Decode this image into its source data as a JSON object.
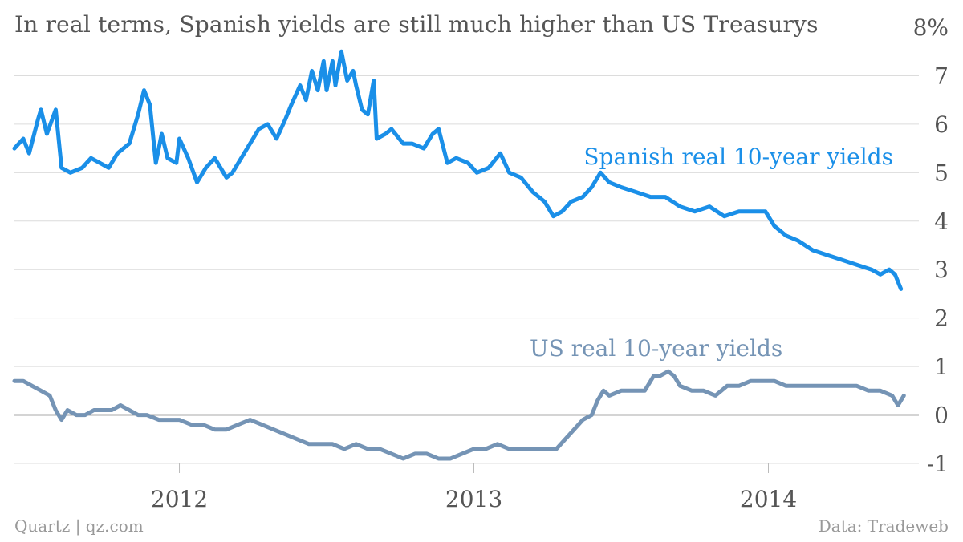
{
  "chart_data": {
    "type": "line",
    "title": "In real terms, Spanish yields are still much higher than US Treasurys",
    "ylim": [
      -1,
      8
    ],
    "yticks": [
      "-1",
      "0",
      "1",
      "2",
      "3",
      "4",
      "5",
      "6",
      "7",
      "8%"
    ],
    "xticks": [
      {
        "label": "2012",
        "t": 2012.0
      },
      {
        "label": "2013",
        "t": 2013.0
      },
      {
        "label": "2014",
        "t": 2014.0
      }
    ],
    "xlim": [
      2011.44,
      2014.47
    ],
    "grid": true,
    "series": [
      {
        "name": "Spanish real 10-year yields",
        "color": "#1a8fe8",
        "points": [
          [
            2011.44,
            5.5
          ],
          [
            2011.47,
            5.7
          ],
          [
            2011.49,
            5.4
          ],
          [
            2011.52,
            6.1
          ],
          [
            2011.53,
            6.3
          ],
          [
            2011.55,
            5.8
          ],
          [
            2011.58,
            6.3
          ],
          [
            2011.6,
            5.1
          ],
          [
            2011.63,
            5.0
          ],
          [
            2011.67,
            5.1
          ],
          [
            2011.7,
            5.3
          ],
          [
            2011.73,
            5.2
          ],
          [
            2011.76,
            5.1
          ],
          [
            2011.79,
            5.4
          ],
          [
            2011.83,
            5.6
          ],
          [
            2011.86,
            6.2
          ],
          [
            2011.88,
            6.7
          ],
          [
            2011.9,
            6.4
          ],
          [
            2011.92,
            5.2
          ],
          [
            2011.94,
            5.8
          ],
          [
            2011.96,
            5.3
          ],
          [
            2011.99,
            5.2
          ],
          [
            2012.0,
            5.7
          ],
          [
            2012.03,
            5.3
          ],
          [
            2012.06,
            4.8
          ],
          [
            2012.09,
            5.1
          ],
          [
            2012.12,
            5.3
          ],
          [
            2012.16,
            4.9
          ],
          [
            2012.18,
            5.0
          ],
          [
            2012.21,
            5.3
          ],
          [
            2012.24,
            5.6
          ],
          [
            2012.27,
            5.9
          ],
          [
            2012.3,
            6.0
          ],
          [
            2012.33,
            5.7
          ],
          [
            2012.36,
            6.1
          ],
          [
            2012.38,
            6.4
          ],
          [
            2012.41,
            6.8
          ],
          [
            2012.43,
            6.5
          ],
          [
            2012.45,
            7.1
          ],
          [
            2012.47,
            6.7
          ],
          [
            2012.49,
            7.3
          ],
          [
            2012.5,
            6.7
          ],
          [
            2012.52,
            7.3
          ],
          [
            2012.53,
            6.8
          ],
          [
            2012.55,
            7.5
          ],
          [
            2012.57,
            6.9
          ],
          [
            2012.59,
            7.1
          ],
          [
            2012.6,
            6.8
          ],
          [
            2012.62,
            6.3
          ],
          [
            2012.64,
            6.2
          ],
          [
            2012.66,
            6.9
          ],
          [
            2012.67,
            5.7
          ],
          [
            2012.7,
            5.8
          ],
          [
            2012.72,
            5.9
          ],
          [
            2012.76,
            5.6
          ],
          [
            2012.79,
            5.6
          ],
          [
            2012.83,
            5.5
          ],
          [
            2012.86,
            5.8
          ],
          [
            2012.88,
            5.9
          ],
          [
            2012.91,
            5.2
          ],
          [
            2012.94,
            5.3
          ],
          [
            2012.98,
            5.2
          ],
          [
            2013.01,
            5.0
          ],
          [
            2013.05,
            5.1
          ],
          [
            2013.09,
            5.4
          ],
          [
            2013.12,
            5.0
          ],
          [
            2013.16,
            4.9
          ],
          [
            2013.2,
            4.6
          ],
          [
            2013.24,
            4.4
          ],
          [
            2013.27,
            4.1
          ],
          [
            2013.3,
            4.2
          ],
          [
            2013.33,
            4.4
          ],
          [
            2013.37,
            4.5
          ],
          [
            2013.4,
            4.7
          ],
          [
            2013.43,
            5.0
          ],
          [
            2013.46,
            4.8
          ],
          [
            2013.5,
            4.7
          ],
          [
            2013.55,
            4.6
          ],
          [
            2013.6,
            4.5
          ],
          [
            2013.65,
            4.5
          ],
          [
            2013.7,
            4.3
          ],
          [
            2013.75,
            4.2
          ],
          [
            2013.8,
            4.3
          ],
          [
            2013.85,
            4.1
          ],
          [
            2013.9,
            4.2
          ],
          [
            2013.93,
            4.2
          ],
          [
            2013.96,
            4.2
          ],
          [
            2013.99,
            4.2
          ],
          [
            2014.02,
            3.9
          ],
          [
            2014.06,
            3.7
          ],
          [
            2014.1,
            3.6
          ],
          [
            2014.15,
            3.4
          ],
          [
            2014.2,
            3.3
          ],
          [
            2014.25,
            3.2
          ],
          [
            2014.3,
            3.1
          ],
          [
            2014.35,
            3.0
          ],
          [
            2014.38,
            2.9
          ],
          [
            2014.41,
            3.0
          ],
          [
            2014.43,
            2.9
          ],
          [
            2014.45,
            2.6
          ]
        ]
      },
      {
        "name": "US real 10-year yields",
        "color": "#7594b5",
        "points": [
          [
            2011.44,
            0.7
          ],
          [
            2011.47,
            0.7
          ],
          [
            2011.5,
            0.6
          ],
          [
            2011.53,
            0.5
          ],
          [
            2011.56,
            0.4
          ],
          [
            2011.58,
            0.1
          ],
          [
            2011.6,
            -0.1
          ],
          [
            2011.62,
            0.1
          ],
          [
            2011.65,
            0.0
          ],
          [
            2011.68,
            0.0
          ],
          [
            2011.71,
            0.1
          ],
          [
            2011.74,
            0.1
          ],
          [
            2011.77,
            0.1
          ],
          [
            2011.8,
            0.2
          ],
          [
            2011.83,
            0.1
          ],
          [
            2011.86,
            0.0
          ],
          [
            2011.89,
            0.0
          ],
          [
            2011.93,
            -0.1
          ],
          [
            2011.97,
            -0.1
          ],
          [
            2012.0,
            -0.1
          ],
          [
            2012.04,
            -0.2
          ],
          [
            2012.08,
            -0.2
          ],
          [
            2012.12,
            -0.3
          ],
          [
            2012.16,
            -0.3
          ],
          [
            2012.2,
            -0.2
          ],
          [
            2012.24,
            -0.1
          ],
          [
            2012.28,
            -0.2
          ],
          [
            2012.32,
            -0.3
          ],
          [
            2012.36,
            -0.4
          ],
          [
            2012.4,
            -0.5
          ],
          [
            2012.44,
            -0.6
          ],
          [
            2012.48,
            -0.6
          ],
          [
            2012.52,
            -0.6
          ],
          [
            2012.56,
            -0.7
          ],
          [
            2012.6,
            -0.6
          ],
          [
            2012.64,
            -0.7
          ],
          [
            2012.68,
            -0.7
          ],
          [
            2012.72,
            -0.8
          ],
          [
            2012.76,
            -0.9
          ],
          [
            2012.8,
            -0.8
          ],
          [
            2012.84,
            -0.8
          ],
          [
            2012.88,
            -0.9
          ],
          [
            2012.92,
            -0.9
          ],
          [
            2012.96,
            -0.8
          ],
          [
            2013.0,
            -0.7
          ],
          [
            2013.04,
            -0.7
          ],
          [
            2013.08,
            -0.6
          ],
          [
            2013.12,
            -0.7
          ],
          [
            2013.16,
            -0.7
          ],
          [
            2013.2,
            -0.7
          ],
          [
            2013.24,
            -0.7
          ],
          [
            2013.28,
            -0.7
          ],
          [
            2013.31,
            -0.5
          ],
          [
            2013.34,
            -0.3
          ],
          [
            2013.37,
            -0.1
          ],
          [
            2013.4,
            0.0
          ],
          [
            2013.42,
            0.3
          ],
          [
            2013.44,
            0.5
          ],
          [
            2013.46,
            0.4
          ],
          [
            2013.5,
            0.5
          ],
          [
            2013.54,
            0.5
          ],
          [
            2013.58,
            0.5
          ],
          [
            2013.61,
            0.8
          ],
          [
            2013.63,
            0.8
          ],
          [
            2013.66,
            0.9
          ],
          [
            2013.68,
            0.8
          ],
          [
            2013.7,
            0.6
          ],
          [
            2013.74,
            0.5
          ],
          [
            2013.78,
            0.5
          ],
          [
            2013.82,
            0.4
          ],
          [
            2013.86,
            0.6
          ],
          [
            2013.9,
            0.6
          ],
          [
            2013.94,
            0.7
          ],
          [
            2013.98,
            0.7
          ],
          [
            2014.02,
            0.7
          ],
          [
            2014.06,
            0.6
          ],
          [
            2014.1,
            0.6
          ],
          [
            2014.14,
            0.6
          ],
          [
            2014.18,
            0.6
          ],
          [
            2014.22,
            0.6
          ],
          [
            2014.26,
            0.6
          ],
          [
            2014.3,
            0.6
          ],
          [
            2014.34,
            0.5
          ],
          [
            2014.38,
            0.5
          ],
          [
            2014.42,
            0.4
          ],
          [
            2014.44,
            0.2
          ],
          [
            2014.46,
            0.4
          ]
        ]
      }
    ]
  },
  "source": "Data: Tradeweb",
  "brand": "Quartz | qz.com"
}
